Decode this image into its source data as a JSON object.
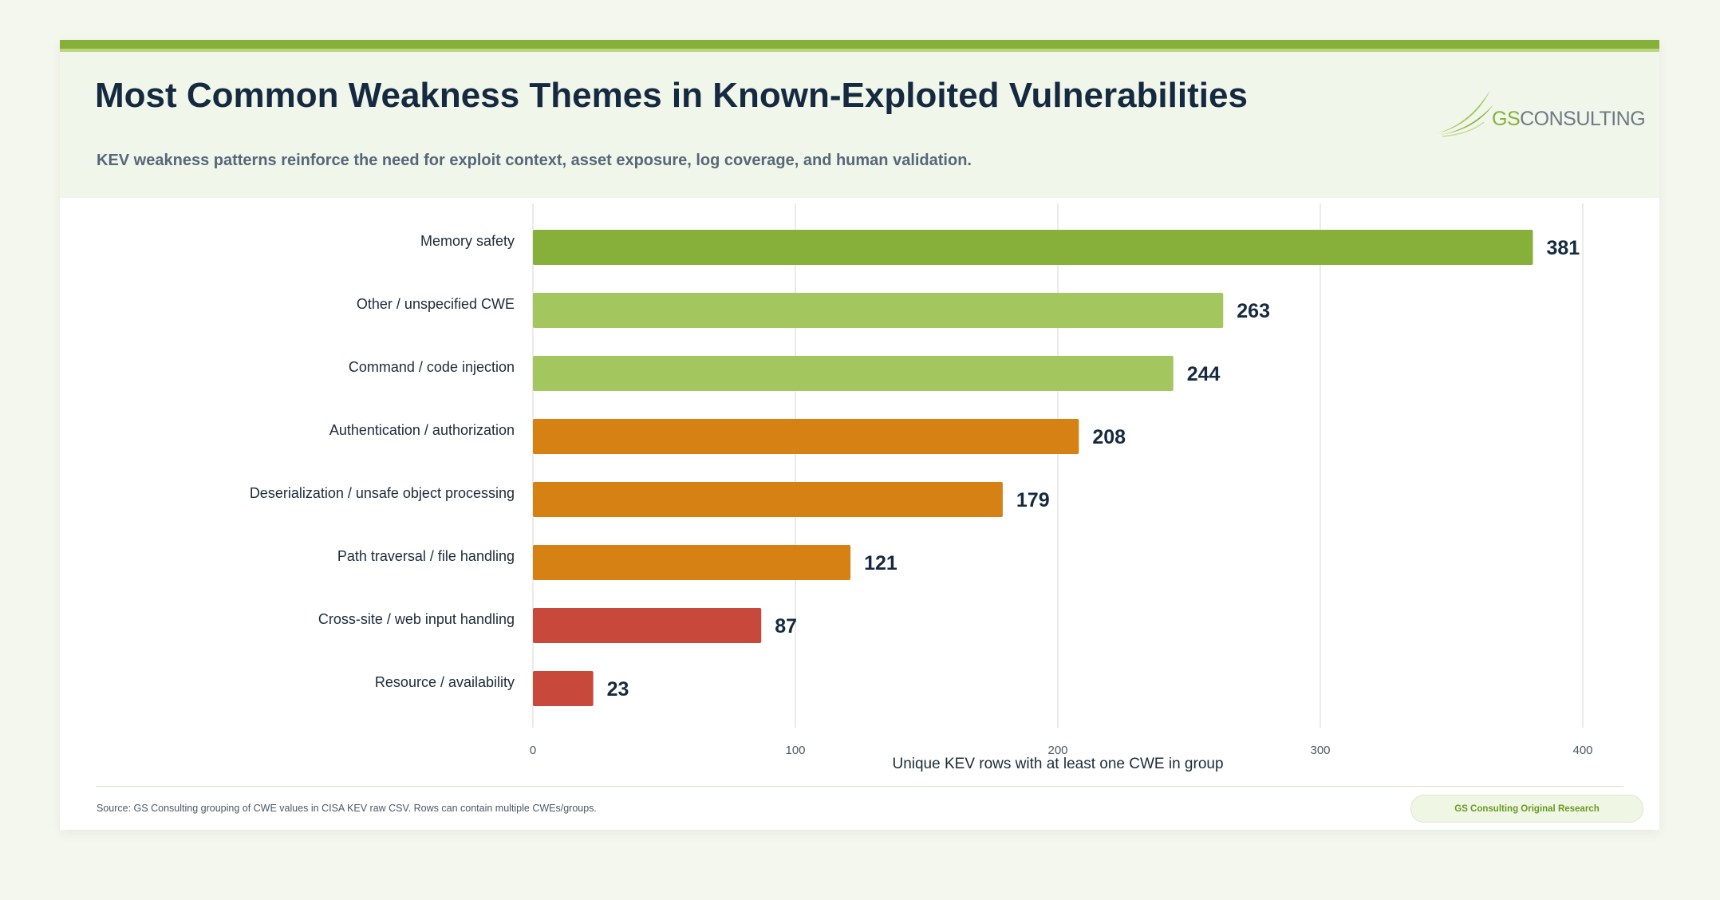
{
  "header": {
    "title": "Most Common Weakness Themes in Known-Exploited Vulnerabilities",
    "subtitle": "KEV weakness patterns reinforce the need for exploit context, asset exposure, log coverage, and human validation."
  },
  "logo": {
    "brand_prefix": "GS",
    "brand_suffix": "CONSULTING",
    "icon": "swoosh-logo-icon"
  },
  "footer": {
    "source": "Source: GS Consulting grouping of CWE values in CISA KEV raw CSV. Rows can contain multiple CWEs/groups.",
    "badge": "GS Consulting Original Research"
  },
  "colors": {
    "brand_green": "#86b03a",
    "light_green": "#a3c65e",
    "orange": "#d58113",
    "red": "#c8483c"
  },
  "chart_data": {
    "type": "bar",
    "orientation": "horizontal",
    "categories": [
      "Memory safety",
      "Other / unspecified CWE",
      "Command / code injection",
      "Authentication / authorization",
      "Deserialization / unsafe object processing",
      "Path traversal / file handling",
      "Cross-site / web input handling",
      "Resource / availability"
    ],
    "values": [
      381,
      263,
      244,
      208,
      179,
      121,
      87,
      23
    ],
    "bar_colors": [
      "#86b03a",
      "#a3c65e",
      "#a3c65e",
      "#d58113",
      "#d58113",
      "#d58113",
      "#c8483c",
      "#c8483c"
    ],
    "xlabel": "Unique KEV rows with at least one CWE in group",
    "xlim": [
      0,
      400
    ],
    "xticks": [
      0,
      100,
      200,
      300,
      400
    ],
    "grid": true,
    "data_labels": true
  }
}
